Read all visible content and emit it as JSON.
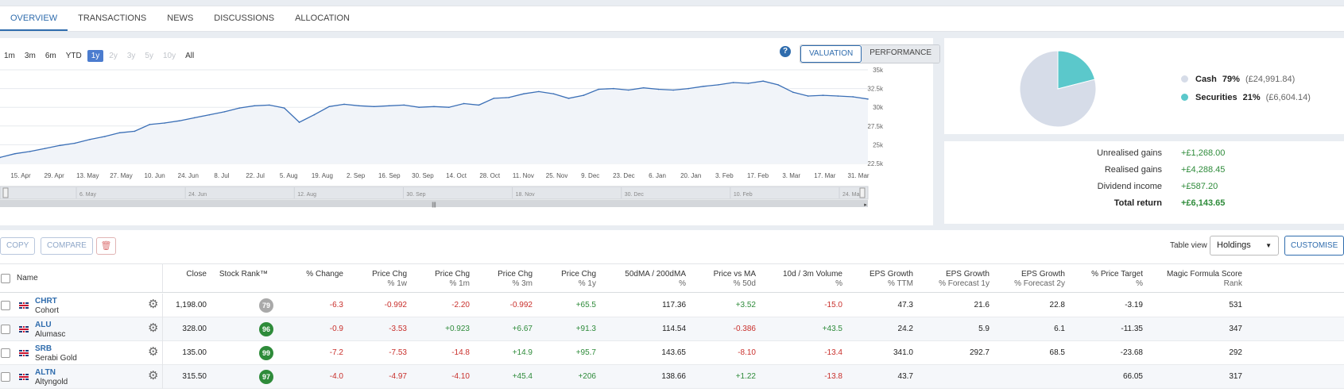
{
  "tabs": [
    {
      "label": "OVERVIEW",
      "active": true
    },
    {
      "label": "TRANSACTIONS",
      "active": false
    },
    {
      "label": "NEWS",
      "active": false
    },
    {
      "label": "DISCUSSIONS",
      "active": false
    },
    {
      "label": "ALLOCATION",
      "active": false
    }
  ],
  "chart": {
    "periods": [
      {
        "label": "1m",
        "state": "normal"
      },
      {
        "label": "3m",
        "state": "normal"
      },
      {
        "label": "6m",
        "state": "normal"
      },
      {
        "label": "YTD",
        "state": "normal"
      },
      {
        "label": "1y",
        "state": "active"
      },
      {
        "label": "2y",
        "state": "disabled"
      },
      {
        "label": "3y",
        "state": "disabled"
      },
      {
        "label": "5y",
        "state": "disabled"
      },
      {
        "label": "10y",
        "state": "disabled"
      },
      {
        "label": "All",
        "state": "normal"
      }
    ],
    "help_icon": "?",
    "toggle": {
      "valuation": "VALUATION",
      "performance": "PERFORMANCE",
      "active": "valuation"
    },
    "navigator_labels": [
      "6. May",
      "24. Jun",
      "12. Aug",
      "30. Sep",
      "18. Nov",
      "30. Dec",
      "10. Feb",
      "24. Mar"
    ],
    "navigator_grip": "|||"
  },
  "chart_data": {
    "type": "area",
    "title": "",
    "xlabel": "",
    "ylabel": "",
    "ylim": [
      22500,
      35000
    ],
    "y_ticks": [
      "22.5k",
      "25k",
      "27.5k",
      "30k",
      "32.5k",
      "35k"
    ],
    "x_ticks": [
      "15. Apr",
      "29. Apr",
      "13. May",
      "27. May",
      "10. Jun",
      "24. Jun",
      "8. Jul",
      "22. Jul",
      "5. Aug",
      "19. Aug",
      "2. Sep",
      "16. Sep",
      "30. Sep",
      "14. Oct",
      "28. Oct",
      "11. Nov",
      "25. Nov",
      "9. Dec",
      "23. Dec",
      "6. Jan",
      "20. Jan",
      "3. Feb",
      "17. Feb",
      "3. Mar",
      "17. Mar",
      "31. Mar"
    ],
    "x": [
      "9. Apr",
      "15. Apr",
      "22. Apr",
      "29. Apr",
      "6. May",
      "13. May",
      "20. May",
      "27. May",
      "3. Jun",
      "8. Jun",
      "10. Jun",
      "17. Jun",
      "24. Jun",
      "1. Jul",
      "8. Jul",
      "15. Jul",
      "22. Jul",
      "26. Jul",
      "29. Jul",
      "2. Aug",
      "5. Aug",
      "12. Aug",
      "19. Aug",
      "26. Aug",
      "2. Sep",
      "9. Sep",
      "16. Sep",
      "23. Sep",
      "30. Sep",
      "7. Oct",
      "14. Oct",
      "21. Oct",
      "25. Oct",
      "26. Oct",
      "28. Oct",
      "4. Nov",
      "11. Nov",
      "18. Nov",
      "25. Nov",
      "2. Dec",
      "9. Dec",
      "16. Dec",
      "23. Dec",
      "30. Dec",
      "6. Jan",
      "13. Jan",
      "20. Jan",
      "27. Jan",
      "3. Feb",
      "10. Feb",
      "14. Feb",
      "17. Feb",
      "24. Feb",
      "3. Mar",
      "10. Mar",
      "17. Mar",
      "24. Mar",
      "31. Mar",
      "4. Apr"
    ],
    "series": [
      {
        "values": [
          23300,
          23800,
          24100,
          24500,
          24900,
          25200,
          25700,
          26100,
          26600,
          26800,
          27700,
          27900,
          28200,
          28600,
          29000,
          29400,
          29900,
          30200,
          30300,
          29900,
          28000,
          29000,
          30100,
          30400,
          30200,
          30100,
          30200,
          30300,
          30000,
          30100,
          30000,
          30500,
          30300,
          31200,
          31300,
          31800,
          32100,
          31800,
          31200,
          31600,
          32400,
          32500,
          32300,
          32600,
          32400,
          32300,
          32500,
          32800,
          33000,
          33300,
          33200,
          33500,
          33000,
          32000,
          31500,
          31600,
          31500,
          31400,
          31100
        ]
      }
    ],
    "grid": true,
    "legend": "none"
  },
  "allocation": {
    "chart_data": {
      "type": "pie",
      "categories": [
        "Cash",
        "Securities"
      ],
      "values": [
        79,
        21
      ]
    },
    "items": [
      {
        "label": "Cash",
        "pct": "79%",
        "value": "(£24,991.84)",
        "color": "#d6dce8"
      },
      {
        "label": "Securities",
        "pct": "21%",
        "value": "(£6,604.14)",
        "color": "#5bc8cb"
      }
    ]
  },
  "returns": [
    {
      "label": "Unrealised gains",
      "value": "+£1,268.00",
      "total": false
    },
    {
      "label": "Realised gains",
      "value": "+£4,288.45",
      "total": false
    },
    {
      "label": "Dividend income",
      "value": "+£587.20",
      "total": false
    },
    {
      "label": "Total return",
      "value": "+£6,143.65",
      "total": true
    }
  ],
  "toolbar": {
    "copy": "COPY",
    "compare": "COMPARE",
    "delete_icon": "🗑",
    "table_view_label": "Table view",
    "table_view_value": "Holdings",
    "caret": "▼",
    "customise": "CUSTOMISE"
  },
  "table": {
    "headers": [
      {
        "main": "Name",
        "sub": ""
      },
      {
        "main": "Close",
        "sub": ""
      },
      {
        "main": "Stock Rank™",
        "sub": ""
      },
      {
        "main": "% Change",
        "sub": ""
      },
      {
        "main": "Price Chg",
        "sub": "% 1w"
      },
      {
        "main": "Price Chg",
        "sub": "% 1m"
      },
      {
        "main": "Price Chg",
        "sub": "% 3m"
      },
      {
        "main": "Price Chg",
        "sub": "% 1y"
      },
      {
        "main": "50dMA / 200dMA",
        "sub": "%"
      },
      {
        "main": "Price vs MA",
        "sub": "% 50d"
      },
      {
        "main": "10d / 3m Volume",
        "sub": "%"
      },
      {
        "main": "EPS Growth",
        "sub": "% TTM"
      },
      {
        "main": "EPS Growth",
        "sub": "% Forecast 1y"
      },
      {
        "main": "EPS Growth",
        "sub": "% Forecast 2y"
      },
      {
        "main": "% Price Target",
        "sub": "%"
      },
      {
        "main": "Magic Formula Score",
        "sub": "Rank"
      }
    ],
    "rows": [
      {
        "ticker": "CHRT",
        "name": "Cohort",
        "close": "1,198.00",
        "rank": "79",
        "rank_color": "#a9a9a9",
        "chg": "-6.3",
        "w1": "-0.992",
        "m1": "-2.20",
        "m3": "-0.992",
        "y1": "+65.5",
        "ma": "117.36",
        "pvma": "+3.52",
        "vol": "-15.0",
        "eps_ttm": "47.3",
        "eps_f1": "21.6",
        "eps_f2": "22.8",
        "pt": "-3.19",
        "mf": "531"
      },
      {
        "ticker": "ALU",
        "name": "Alumasc",
        "close": "328.00",
        "rank": "96",
        "rank_color": "#2e8b3a",
        "chg": "-0.9",
        "w1": "-3.53",
        "m1": "+0.923",
        "m3": "+6.67",
        "y1": "+91.3",
        "ma": "114.54",
        "pvma": "-0.386",
        "vol": "+43.5",
        "eps_ttm": "24.2",
        "eps_f1": "5.9",
        "eps_f2": "6.1",
        "pt": "-11.35",
        "mf": "347"
      },
      {
        "ticker": "SRB",
        "name": "Serabi Gold",
        "close": "135.00",
        "rank": "99",
        "rank_color": "#2e8b3a",
        "chg": "-7.2",
        "w1": "-7.53",
        "m1": "-14.8",
        "m3": "+14.9",
        "y1": "+95.7",
        "ma": "143.65",
        "pvma": "-8.10",
        "vol": "-13.4",
        "eps_ttm": "341.0",
        "eps_f1": "292.7",
        "eps_f2": "68.5",
        "pt": "-23.68",
        "mf": "292"
      },
      {
        "ticker": "ALTN",
        "name": "Altyngold",
        "close": "315.50",
        "rank": "97",
        "rank_color": "#2e8b3a",
        "chg": "-4.0",
        "w1": "-4.97",
        "m1": "-4.10",
        "m3": "+45.4",
        "y1": "+206",
        "ma": "138.66",
        "pvma": "+1.22",
        "vol": "-13.8",
        "eps_ttm": "43.7",
        "eps_f1": "",
        "eps_f2": "",
        "pt": "66.05",
        "mf": "317"
      }
    ]
  }
}
